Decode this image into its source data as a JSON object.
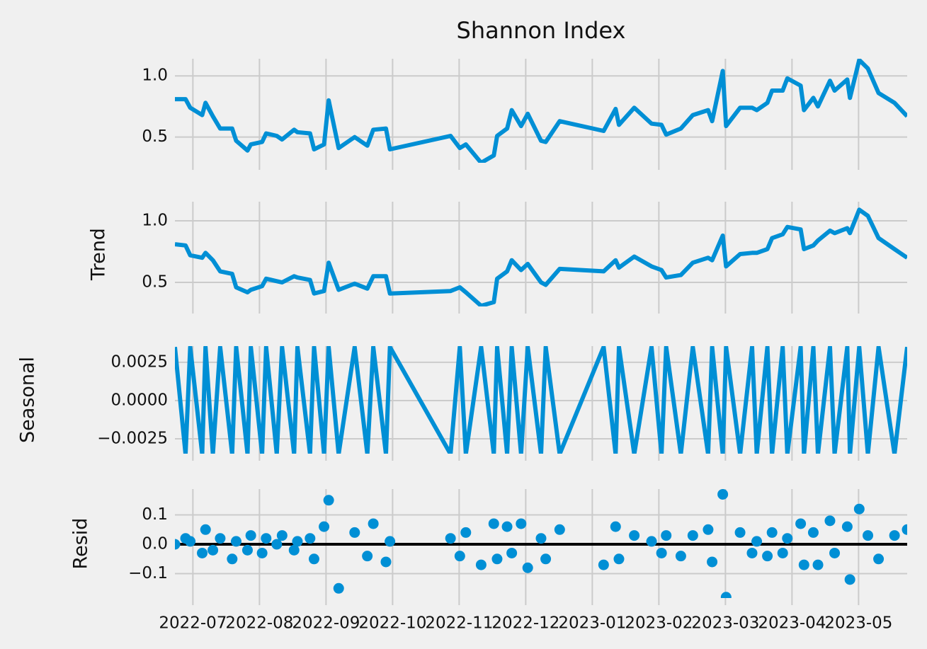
{
  "chart_data": [
    {
      "type": "line",
      "title": "Shannon Index",
      "color": "#008fd5",
      "x": [
        6.73,
        6.89,
        6.96,
        7.14,
        7.19,
        7.3,
        7.41,
        7.59,
        7.65,
        7.82,
        7.87,
        8.04,
        8.1,
        8.26,
        8.34,
        8.52,
        8.57,
        8.76,
        8.82,
        8.97,
        9.04,
        9.19,
        9.43,
        9.62,
        9.71,
        9.9,
        9.96,
        10.87,
        11.01,
        11.1,
        11.33,
        11.52,
        11.57,
        11.72,
        11.79,
        11.93,
        12.03,
        12.23,
        12.3,
        12.51,
        13.17,
        13.35,
        13.4,
        13.63,
        13.89,
        14.04,
        14.11,
        14.33,
        14.51,
        14.74,
        14.8,
        14.96,
        15.01,
        15.22,
        15.4,
        15.47,
        15.63,
        15.7,
        15.86,
        15.93,
        16.13,
        16.18,
        16.32,
        16.39,
        16.57,
        16.64,
        16.83,
        16.87,
        17.01,
        17.14,
        17.3,
        17.54,
        17.73
      ],
      "values": [
        0.81,
        0.81,
        0.74,
        0.68,
        0.78,
        0.67,
        0.57,
        0.57,
        0.47,
        0.39,
        0.44,
        0.46,
        0.53,
        0.51,
        0.48,
        0.56,
        0.54,
        0.53,
        0.4,
        0.44,
        0.8,
        0.41,
        0.5,
        0.43,
        0.56,
        0.57,
        0.4,
        0.51,
        0.41,
        0.44,
        0.29,
        0.35,
        0.51,
        0.57,
        0.72,
        0.59,
        0.69,
        0.47,
        0.46,
        0.63,
        0.55,
        0.73,
        0.6,
        0.74,
        0.61,
        0.6,
        0.52,
        0.57,
        0.68,
        0.72,
        0.63,
        1.04,
        0.59,
        0.74,
        0.74,
        0.72,
        0.78,
        0.88,
        0.88,
        0.98,
        0.92,
        0.72,
        0.82,
        0.75,
        0.96,
        0.88,
        0.97,
        0.82,
        1.13,
        1.06,
        0.86,
        0.78,
        0.67
      ],
      "xlim": [
        6.73,
        17.73
      ],
      "xticks": [
        7,
        8,
        9,
        10,
        11,
        12,
        13,
        14,
        15,
        16,
        17
      ],
      "ylim": [
        0.29,
        1.14
      ],
      "yticks": [
        {
          "value": 1.0,
          "label": "1.0"
        },
        {
          "value": 0.5,
          "label": "0.5"
        }
      ],
      "grid": true
    },
    {
      "type": "line",
      "ylabel": "Trend",
      "color": "#008fd5",
      "x": [
        6.73,
        6.89,
        6.96,
        7.14,
        7.19,
        7.3,
        7.41,
        7.59,
        7.65,
        7.82,
        7.87,
        8.04,
        8.1,
        8.26,
        8.34,
        8.52,
        8.57,
        8.76,
        8.82,
        8.97,
        9.04,
        9.19,
        9.43,
        9.62,
        9.71,
        9.9,
        9.96,
        10.87,
        11.01,
        11.1,
        11.33,
        11.52,
        11.57,
        11.72,
        11.79,
        11.93,
        12.03,
        12.23,
        12.3,
        12.51,
        13.17,
        13.35,
        13.4,
        13.63,
        13.89,
        14.04,
        14.11,
        14.33,
        14.51,
        14.74,
        14.8,
        14.96,
        15.01,
        15.22,
        15.4,
        15.47,
        15.63,
        15.7,
        15.86,
        15.93,
        16.13,
        16.18,
        16.32,
        16.39,
        16.57,
        16.64,
        16.83,
        16.87,
        17.01,
        17.14,
        17.3,
        17.54,
        17.73
      ],
      "values": [
        0.81,
        0.8,
        0.72,
        0.7,
        0.74,
        0.68,
        0.59,
        0.57,
        0.46,
        0.42,
        0.44,
        0.47,
        0.53,
        0.51,
        0.5,
        0.55,
        0.54,
        0.52,
        0.41,
        0.43,
        0.66,
        0.44,
        0.49,
        0.45,
        0.55,
        0.55,
        0.41,
        0.43,
        0.46,
        0.42,
        0.31,
        0.34,
        0.53,
        0.59,
        0.68,
        0.6,
        0.65,
        0.5,
        0.48,
        0.61,
        0.59,
        0.68,
        0.62,
        0.71,
        0.63,
        0.6,
        0.54,
        0.56,
        0.66,
        0.7,
        0.68,
        0.88,
        0.63,
        0.73,
        0.74,
        0.74,
        0.77,
        0.86,
        0.89,
        0.95,
        0.93,
        0.77,
        0.8,
        0.84,
        0.92,
        0.9,
        0.94,
        0.9,
        1.09,
        1.04,
        0.86,
        0.77,
        0.7
      ],
      "xlim": [
        6.73,
        17.73
      ],
      "xticks": [
        7,
        8,
        9,
        10,
        11,
        12,
        13,
        14,
        15,
        16,
        17
      ],
      "ylim": [
        0.305,
        1.155
      ],
      "yticks": [
        {
          "value": 1.0,
          "label": "1.0"
        },
        {
          "value": 0.5,
          "label": "0.5"
        }
      ],
      "grid": true
    },
    {
      "type": "line",
      "ylabel": "Seasonal",
      "color": "#008fd5",
      "x": [
        6.73,
        6.89,
        6.96,
        7.14,
        7.19,
        7.3,
        7.41,
        7.59,
        7.65,
        7.82,
        7.87,
        8.04,
        8.1,
        8.26,
        8.34,
        8.52,
        8.57,
        8.76,
        8.82,
        8.97,
        9.04,
        9.19,
        9.43,
        9.62,
        9.71,
        9.9,
        9.96,
        10.87,
        11.01,
        11.1,
        11.33,
        11.52,
        11.57,
        11.72,
        11.79,
        11.93,
        12.03,
        12.23,
        12.3,
        12.51,
        13.17,
        13.35,
        13.4,
        13.63,
        13.89,
        14.04,
        14.11,
        14.33,
        14.51,
        14.74,
        14.8,
        14.96,
        15.01,
        15.22,
        15.4,
        15.47,
        15.63,
        15.7,
        15.86,
        15.93,
        16.13,
        16.18,
        16.32,
        16.39,
        16.57,
        16.64,
        16.83,
        16.87,
        17.01,
        17.14,
        17.3,
        17.54,
        17.73
      ],
      "values": [
        0.0035,
        -0.0035,
        0.0035,
        -0.0035,
        0.0035,
        -0.0035,
        0.0035,
        -0.0035,
        0.0035,
        -0.0035,
        0.0035,
        -0.0035,
        0.0035,
        -0.0035,
        0.0035,
        -0.0035,
        0.0035,
        -0.0035,
        0.0035,
        -0.0035,
        0.0035,
        -0.0035,
        0.0035,
        -0.0035,
        0.0035,
        -0.0035,
        0.0035,
        -0.0035,
        0.0035,
        -0.0035,
        0.0035,
        -0.0035,
        0.0035,
        -0.0035,
        0.0035,
        -0.0035,
        0.0035,
        -0.0035,
        0.0035,
        -0.0035,
        0.0035,
        -0.0035,
        0.0035,
        -0.0035,
        0.0035,
        -0.0035,
        0.0035,
        -0.0035,
        0.0035,
        -0.0035,
        0.0035,
        -0.0035,
        0.0035,
        -0.0035,
        0.0035,
        -0.0035,
        0.0035,
        -0.0035,
        0.0035,
        -0.0035,
        0.0035,
        -0.0035,
        0.0035,
        -0.0035,
        0.0035,
        -0.0035,
        0.0035,
        -0.0035,
        0.0035,
        -0.0035,
        0.0035,
        -0.0035,
        0.0035
      ],
      "xlim": [
        6.73,
        17.73
      ],
      "xticks": [
        7,
        8,
        9,
        10,
        11,
        12,
        13,
        14,
        15,
        16,
        17
      ],
      "ylim": [
        -0.00347,
        0.00356
      ],
      "yticks": [
        {
          "value": 0.0025,
          "label": "0.0025"
        },
        {
          "value": 0,
          "label": "0.0000"
        },
        {
          "value": -0.0025,
          "label": "−0.0025"
        }
      ],
      "grid": true
    },
    {
      "type": "scatter",
      "ylabel": "Resid",
      "color": "#008fd5",
      "x": [
        6.73,
        6.89,
        6.96,
        7.14,
        7.19,
        7.3,
        7.41,
        7.59,
        7.65,
        7.82,
        7.87,
        8.04,
        8.1,
        8.26,
        8.34,
        8.52,
        8.57,
        8.76,
        8.82,
        8.97,
        9.04,
        9.19,
        9.43,
        9.62,
        9.71,
        9.9,
        9.96,
        10.87,
        11.01,
        11.1,
        11.33,
        11.52,
        11.57,
        11.72,
        11.79,
        11.93,
        12.03,
        12.23,
        12.3,
        12.51,
        13.17,
        13.35,
        13.4,
        13.63,
        13.89,
        14.04,
        14.11,
        14.33,
        14.51,
        14.74,
        14.8,
        14.96,
        15.01,
        15.22,
        15.4,
        15.47,
        15.63,
        15.7,
        15.86,
        15.93,
        16.13,
        16.18,
        16.32,
        16.39,
        16.57,
        16.64,
        16.83,
        16.87,
        17.01,
        17.14,
        17.3,
        17.54,
        17.73
      ],
      "values": [
        0.0,
        0.02,
        0.01,
        -0.03,
        0.05,
        -0.02,
        0.02,
        -0.05,
        0.01,
        -0.02,
        0.03,
        -0.03,
        0.02,
        0.0,
        0.03,
        -0.02,
        0.01,
        0.02,
        -0.05,
        0.06,
        0.15,
        -0.15,
        0.04,
        -0.04,
        0.07,
        -0.06,
        0.01,
        0.02,
        -0.04,
        0.04,
        -0.07,
        0.07,
        -0.05,
        0.06,
        -0.03,
        0.07,
        -0.08,
        0.02,
        -0.05,
        0.05,
        -0.07,
        0.06,
        -0.05,
        0.03,
        0.01,
        -0.03,
        0.03,
        -0.04,
        0.03,
        0.05,
        -0.06,
        0.17,
        -0.18,
        0.04,
        -0.03,
        0.01,
        -0.04,
        0.04,
        -0.03,
        0.02,
        0.07,
        -0.07,
        0.04,
        -0.07,
        0.08,
        -0.03,
        0.06,
        -0.12,
        0.12,
        0.03,
        -0.05,
        0.03,
        0.05
      ],
      "xlim": [
        6.73,
        17.73
      ],
      "xticks": [
        {
          "value": 7,
          "label": "2022-07"
        },
        {
          "value": 8,
          "label": "2022-08"
        },
        {
          "value": 9,
          "label": "2022-09"
        },
        {
          "value": 10,
          "label": "2022-10"
        },
        {
          "value": 11,
          "label": "2022-11"
        },
        {
          "value": 12,
          "label": "2022-12"
        },
        {
          "value": 13,
          "label": "2023-01"
        },
        {
          "value": 14,
          "label": "2023-02"
        },
        {
          "value": 15,
          "label": "2023-03"
        },
        {
          "value": 16,
          "label": "2023-04"
        },
        {
          "value": 17,
          "label": "2023-05"
        }
      ],
      "ylim": [
        -0.183,
        0.188
      ],
      "yticks": [
        {
          "value": 0.1,
          "label": "0.1"
        },
        {
          "value": 0,
          "label": "0.0"
        },
        {
          "value": -0.1,
          "label": "−0.1"
        }
      ],
      "grid": true
    }
  ]
}
